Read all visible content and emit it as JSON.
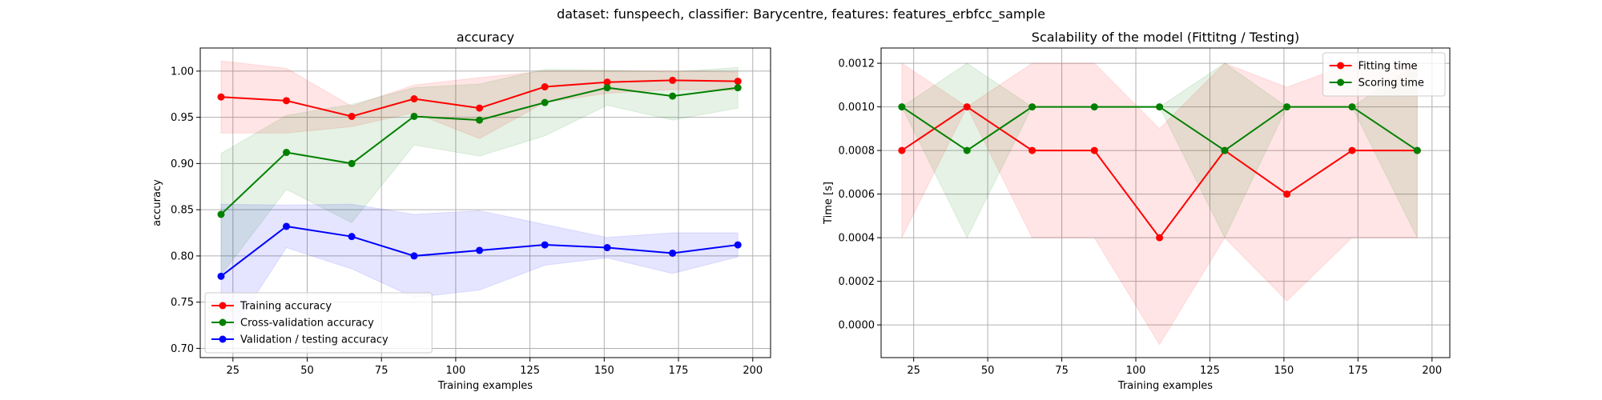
{
  "figure": {
    "suptitle": "dataset: funspeech, classifier: Barycentre, features: features_erbfcc_sample"
  },
  "chart_data": [
    {
      "type": "line",
      "title": "accuracy",
      "xlabel": "Training examples",
      "ylabel": "accuracy",
      "xlim": [
        14,
        206
      ],
      "ylim": [
        0.69,
        1.025
      ],
      "xticks": [
        25,
        50,
        75,
        100,
        125,
        150,
        175,
        200
      ],
      "yticks": [
        0.7,
        0.75,
        0.8,
        0.85,
        0.9,
        0.95,
        1.0
      ],
      "ytick_labels": [
        "0.70",
        "0.75",
        "0.80",
        "0.85",
        "0.90",
        "0.95",
        "1.00"
      ],
      "grid": true,
      "legend": "lower-left",
      "x": [
        21,
        43,
        65,
        86,
        108,
        130,
        151,
        173,
        195
      ],
      "series": [
        {
          "name": "Training accuracy",
          "color": "#ff0000",
          "values": [
            0.972,
            0.968,
            0.951,
            0.97,
            0.96,
            0.983,
            0.988,
            0.99,
            0.989
          ],
          "lower": [
            0.933,
            0.933,
            0.94,
            0.955,
            0.927,
            0.966,
            0.976,
            0.98,
            0.979
          ],
          "upper": [
            1.011,
            1.003,
            0.962,
            0.985,
            0.993,
            1.0,
            1.0,
            1.0,
            0.999
          ]
        },
        {
          "name": "Cross-validation accuracy",
          "color": "#008000",
          "values": [
            0.845,
            0.912,
            0.9,
            0.951,
            0.947,
            0.966,
            0.982,
            0.973,
            0.982
          ],
          "lower": [
            0.779,
            0.872,
            0.836,
            0.92,
            0.908,
            0.93,
            0.963,
            0.947,
            0.96
          ],
          "upper": [
            0.911,
            0.952,
            0.964,
            0.982,
            0.986,
            1.002,
            1.001,
            0.999,
            1.004
          ]
        },
        {
          "name": "Validation / testing accuracy",
          "color": "#0000ff",
          "values": [
            0.778,
            0.832,
            0.821,
            0.8,
            0.806,
            0.812,
            0.809,
            0.803,
            0.812
          ],
          "lower": [
            0.7,
            0.809,
            0.786,
            0.755,
            0.763,
            0.79,
            0.798,
            0.781,
            0.799
          ],
          "upper": [
            0.856,
            0.855,
            0.856,
            0.845,
            0.849,
            0.834,
            0.82,
            0.825,
            0.825
          ]
        }
      ]
    },
    {
      "type": "line",
      "title": "Scalability of the model (Fittitng / Testing)",
      "xlabel": "Training examples",
      "ylabel": "Time [s]",
      "xlim": [
        14,
        206
      ],
      "ylim": [
        -0.00015,
        0.00127
      ],
      "xticks": [
        25,
        50,
        75,
        100,
        125,
        150,
        175,
        200
      ],
      "yticks": [
        0.0,
        0.0002,
        0.0004,
        0.0006,
        0.0008,
        0.001,
        0.0012
      ],
      "ytick_labels": [
        "0.0000",
        "0.0002",
        "0.0004",
        "0.0006",
        "0.0008",
        "0.0010",
        "0.0012"
      ],
      "grid": true,
      "legend": "top-right",
      "x": [
        21,
        43,
        65,
        86,
        108,
        130,
        151,
        173,
        195
      ],
      "series": [
        {
          "name": "Fitting time",
          "color": "#ff0000",
          "values": [
            0.0008,
            0.001,
            0.0008,
            0.0008,
            0.0004,
            0.0008,
            0.0006,
            0.0008,
            0.0008
          ],
          "lower": [
            0.0004,
            0.001,
            0.0004,
            0.0004,
            -9e-05,
            0.0004,
            0.00011,
            0.0004,
            0.0004
          ],
          "upper": [
            0.0012,
            0.001,
            0.0012,
            0.0012,
            0.0009,
            0.0012,
            0.00109,
            0.0012,
            0.0012
          ]
        },
        {
          "name": "Scoring time",
          "color": "#008000",
          "values": [
            0.001,
            0.0008,
            0.001,
            0.001,
            0.001,
            0.0008,
            0.001,
            0.001,
            0.0008
          ],
          "lower": [
            0.001,
            0.0004,
            0.001,
            0.001,
            0.001,
            0.0004,
            0.001,
            0.001,
            0.0004
          ],
          "upper": [
            0.001,
            0.0012,
            0.001,
            0.001,
            0.001,
            0.0012,
            0.001,
            0.001,
            0.0012
          ]
        }
      ]
    }
  ]
}
